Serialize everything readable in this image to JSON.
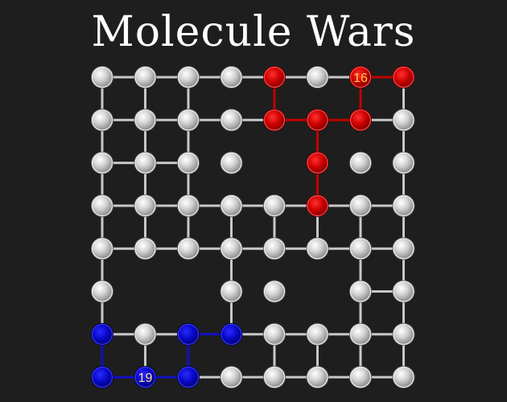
{
  "title": "Molecule Wars",
  "colors": {
    "background": "#1e1e1e",
    "bond_neutral": "#c8c8c8",
    "bond_red": "#c00000",
    "bond_blue": "#1010c0",
    "count_red_text": "#ffd24a",
    "count_blue_text": "#ffe08a"
  },
  "grid": {
    "rows": 8,
    "cols": 8,
    "missing": [
      "2,4",
      "5,1",
      "5,2",
      "5,5"
    ]
  },
  "owners": {
    "0,4": "red",
    "0,6": "red",
    "0,7": "red",
    "1,4": "red",
    "1,5": "red",
    "1,6": "red",
    "2,5": "red",
    "3,5": "red",
    "6,0": "blue",
    "6,2": "blue",
    "6,3": "blue",
    "7,0": "blue",
    "7,1": "blue",
    "7,2": "blue"
  },
  "bonds": {
    "horizontal": [
      [
        1,
        1,
        1,
        1,
        1,
        1,
        1
      ],
      [
        1,
        1,
        1,
        1,
        1,
        1,
        1
      ],
      [
        1,
        1,
        0,
        0,
        0,
        0,
        0
      ],
      [
        1,
        1,
        1,
        1,
        1,
        1,
        1
      ],
      [
        1,
        1,
        1,
        1,
        1,
        1,
        1
      ],
      [
        0,
        0,
        1,
        0,
        0,
        1,
        1
      ],
      [
        1,
        1,
        1,
        1,
        1,
        1,
        1
      ],
      [
        1,
        1,
        1,
        1,
        1,
        1,
        1
      ]
    ],
    "vertical": [
      [
        1,
        1,
        1,
        0,
        1,
        0,
        1,
        1
      ],
      [
        1,
        1,
        1,
        0,
        1,
        1,
        0,
        1
      ],
      [
        1,
        1,
        1,
        0,
        1,
        1,
        0,
        1
      ],
      [
        1,
        1,
        1,
        1,
        1,
        1,
        1,
        1
      ],
      [
        1,
        0,
        1,
        1,
        0,
        1,
        1,
        1
      ],
      [
        1,
        0,
        1,
        1,
        0,
        1,
        1,
        1
      ],
      [
        1,
        1,
        1,
        0,
        1,
        1,
        1,
        1
      ]
    ]
  },
  "counts": [
    {
      "cell": "0,6",
      "text": "16",
      "player": "red"
    },
    {
      "cell": "7,1",
      "text": "19",
      "player": "blue"
    }
  ]
}
